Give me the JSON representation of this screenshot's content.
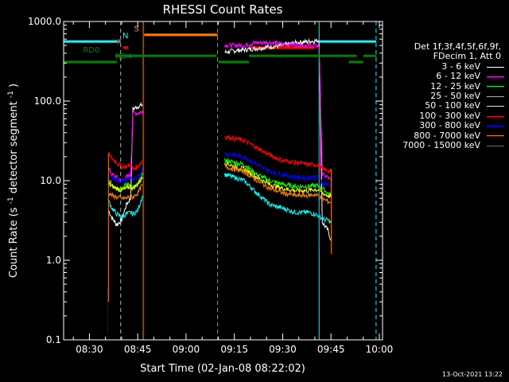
{
  "chart_data": {
    "type": "line",
    "title": "RHESSI Count Rates",
    "xlabel": "Start Time (02-Jan-08 08:22:02)",
    "ylabel_main": "Count Rate (s",
    "ylabel_mid": " detector segment",
    "ylabel_end": ")",
    "ylabel_sup": "-1",
    "y_scale": "log",
    "ylim": [
      0.1,
      1000
    ],
    "xlim_minutes": [
      22.0,
      121.0
    ],
    "y_ticks": [
      {
        "v": 1000,
        "label": "1000.0"
      },
      {
        "v": 100,
        "label": "100.0"
      },
      {
        "v": 10,
        "label": "10.0"
      },
      {
        "v": 1,
        "label": "1.0"
      },
      {
        "v": 0.1,
        "label": "0.1"
      }
    ],
    "x_ticks": [
      {
        "m": 30,
        "label": "08:30"
      },
      {
        "m": 45,
        "label": "08:45"
      },
      {
        "m": 60,
        "label": "09:00"
      },
      {
        "m": 75,
        "label": "09:15"
      },
      {
        "m": 90,
        "label": "09:30"
      },
      {
        "m": 105,
        "label": "09:45"
      },
      {
        "m": 120,
        "label": "10:00"
      }
    ],
    "legend_header": [
      "Det 1f,3f,4f,5f,6f,9f,",
      "FDecim 1, Att 0"
    ],
    "series": [
      {
        "name": "3 - 6 keV",
        "color": "#ffffff",
        "seg1": [
          [
            36.0,
            4.2
          ],
          [
            37.0,
            3.4
          ],
          [
            38.5,
            2.8
          ],
          [
            40.0,
            3.2
          ],
          [
            41.5,
            5.0
          ],
          [
            42.8,
            6.0
          ],
          [
            43.5,
            80
          ],
          [
            45.0,
            85
          ],
          [
            46.5,
            90
          ]
        ],
        "seg2": [
          [
            72.0,
            410
          ],
          [
            75.0,
            430
          ],
          [
            78.0,
            440
          ],
          [
            82.0,
            460
          ],
          [
            86.0,
            480
          ],
          [
            90.0,
            500
          ],
          [
            94.0,
            540
          ],
          [
            98.0,
            560
          ],
          [
            100.0,
            570
          ],
          [
            101.3,
            580
          ],
          [
            102.3,
            3.0
          ],
          [
            104.0,
            2.4
          ],
          [
            105.0,
            1.8
          ]
        ]
      },
      {
        "name": "6 - 12 keV",
        "color": "#ff00ff",
        "seg1": [
          [
            36.0,
            14
          ],
          [
            37.0,
            12
          ],
          [
            38.5,
            11
          ],
          [
            40.0,
            10
          ],
          [
            41.5,
            11
          ],
          [
            42.8,
            12
          ],
          [
            43.5,
            72
          ],
          [
            45.0,
            70
          ],
          [
            46.5,
            75
          ]
        ],
        "seg2": [
          [
            72.0,
            510
          ],
          [
            75.0,
            500
          ],
          [
            78.0,
            505
          ],
          [
            82.0,
            540
          ],
          [
            86.0,
            550
          ],
          [
            90.0,
            520
          ],
          [
            94.0,
            510
          ],
          [
            98.0,
            500
          ],
          [
            100.0,
            500
          ],
          [
            101.3,
            490
          ],
          [
            102.3,
            12
          ],
          [
            104.0,
            11
          ],
          [
            105.0,
            10
          ]
        ]
      },
      {
        "name": "12 - 25 keV",
        "color": "#00ff00",
        "seg1": [
          [
            36.0,
            10
          ],
          [
            37.0,
            9
          ],
          [
            38.5,
            8
          ],
          [
            40.0,
            8
          ],
          [
            41.5,
            9
          ],
          [
            42.8,
            9
          ],
          [
            43.5,
            8
          ],
          [
            45.0,
            9
          ],
          [
            46.5,
            12
          ]
        ],
        "seg2": [
          [
            72.0,
            18
          ],
          [
            75.0,
            17
          ],
          [
            78.0,
            16
          ],
          [
            82.0,
            12
          ],
          [
            86.0,
            10
          ],
          [
            90.0,
            9
          ],
          [
            94.0,
            8.5
          ],
          [
            98.0,
            8.5
          ],
          [
            100.0,
            8.7
          ],
          [
            101.3,
            8.5
          ],
          [
            102.3,
            8
          ],
          [
            104.0,
            7
          ],
          [
            105.0,
            6.5
          ]
        ]
      },
      {
        "name": "25 - 50 keV",
        "color": "#00ffff",
        "seg1": [
          [
            36.0,
            5.5
          ],
          [
            37.0,
            4.5
          ],
          [
            38.5,
            3.8
          ],
          [
            40.0,
            3.5
          ],
          [
            41.5,
            3.8
          ],
          [
            42.8,
            4.0
          ],
          [
            43.5,
            3.8
          ],
          [
            45.0,
            4.2
          ],
          [
            46.5,
            6.5
          ]
        ],
        "seg2": [
          [
            72.0,
            12
          ],
          [
            75.0,
            11
          ],
          [
            78.0,
            10
          ],
          [
            82.0,
            7
          ],
          [
            86.0,
            5
          ],
          [
            90.0,
            4.5
          ],
          [
            94.0,
            4.0
          ],
          [
            98.0,
            4.0
          ],
          [
            100.0,
            3.8
          ],
          [
            101.3,
            3.6
          ],
          [
            102.3,
            3.3
          ],
          [
            104.0,
            3.2
          ],
          [
            105.0,
            3.0
          ]
        ]
      },
      {
        "name": "50 - 100 keV",
        "color": "#ffff00",
        "seg1": [
          [
            36.0,
            9
          ],
          [
            37.0,
            8.5
          ],
          [
            38.5,
            8
          ],
          [
            40.0,
            7.5
          ],
          [
            41.5,
            8
          ],
          [
            42.8,
            8.5
          ],
          [
            43.5,
            8
          ],
          [
            45.0,
            9
          ],
          [
            46.5,
            11
          ]
        ],
        "seg2": [
          [
            72.0,
            17
          ],
          [
            75.0,
            15
          ],
          [
            78.0,
            14
          ],
          [
            82.0,
            11
          ],
          [
            86.0,
            9
          ],
          [
            90.0,
            8
          ],
          [
            94.0,
            7.5
          ],
          [
            98.0,
            7.5
          ],
          [
            100.0,
            7.8
          ],
          [
            101.3,
            7.6
          ],
          [
            102.3,
            7
          ],
          [
            104.0,
            6.5
          ],
          [
            105.0,
            6.3
          ]
        ]
      },
      {
        "name": "100 - 300 keV",
        "color": "#ff0000",
        "seg1": [
          [
            36.0,
            22
          ],
          [
            37.0,
            19
          ],
          [
            38.5,
            17
          ],
          [
            40.0,
            15
          ],
          [
            41.5,
            15
          ],
          [
            42.8,
            16
          ],
          [
            43.5,
            14
          ],
          [
            45.0,
            15
          ],
          [
            46.5,
            18
          ]
        ],
        "seg2": [
          [
            72.0,
            36
          ],
          [
            75.0,
            34
          ],
          [
            78.0,
            32
          ],
          [
            82.0,
            26
          ],
          [
            86.0,
            21
          ],
          [
            90.0,
            18
          ],
          [
            94.0,
            17
          ],
          [
            98.0,
            16
          ],
          [
            100.0,
            16
          ],
          [
            101.3,
            15.5
          ],
          [
            102.3,
            14
          ],
          [
            104.0,
            13.5
          ],
          [
            105.0,
            13
          ]
        ]
      },
      {
        "name": "300 - 800 keV",
        "color": "#0000ff",
        "seg1": [
          [
            36.0,
            12
          ],
          [
            37.0,
            11
          ],
          [
            38.5,
            10
          ],
          [
            40.0,
            10
          ],
          [
            41.5,
            10
          ],
          [
            42.8,
            11
          ],
          [
            43.5,
            10
          ],
          [
            45.0,
            11
          ],
          [
            46.5,
            14
          ]
        ],
        "seg2": [
          [
            72.0,
            22
          ],
          [
            75.0,
            21
          ],
          [
            78.0,
            20
          ],
          [
            82.0,
            16
          ],
          [
            86.0,
            13
          ],
          [
            90.0,
            12
          ],
          [
            94.0,
            11
          ],
          [
            98.0,
            11
          ],
          [
            100.0,
            11.2
          ],
          [
            101.3,
            10.8
          ],
          [
            102.3,
            9.5
          ],
          [
            104.0,
            9
          ],
          [
            105.0,
            8.5
          ]
        ]
      },
      {
        "name": "800 - 7000 keV",
        "color": "#ff8000",
        "seg1": [
          [
            36.0,
            7
          ],
          [
            37.0,
            6.5
          ],
          [
            38.5,
            6.2
          ],
          [
            40.0,
            6
          ],
          [
            41.5,
            6
          ],
          [
            42.8,
            6.5
          ],
          [
            43.5,
            6.2
          ],
          [
            45.0,
            7
          ],
          [
            46.5,
            9
          ]
        ],
        "seg2": [
          [
            72.0,
            15
          ],
          [
            75.0,
            14
          ],
          [
            78.0,
            13
          ],
          [
            82.0,
            10
          ],
          [
            86.0,
            8
          ],
          [
            90.0,
            7
          ],
          [
            94.0,
            6.5
          ],
          [
            98.0,
            6.5
          ],
          [
            100.0,
            6.7
          ],
          [
            101.3,
            6.4
          ],
          [
            102.3,
            6
          ],
          [
            104.0,
            5.5
          ],
          [
            105.0,
            5.3
          ]
        ]
      },
      {
        "name": "7000 - 15000 keV",
        "color": "#808000",
        "seg1": [],
        "seg2": []
      }
    ],
    "vlines": [
      {
        "m": 22.0,
        "color": "#00ffff",
        "dash": false
      },
      {
        "m": 39.7,
        "color": "#00ffff",
        "dash": true
      },
      {
        "m": 46.7,
        "color": "#ff8000",
        "dash": false
      },
      {
        "m": 69.8,
        "color": "#ff8000",
        "dash": true
      },
      {
        "m": 101.3,
        "color": "#00ffff",
        "dash": false
      },
      {
        "m": 119.0,
        "color": "#00ffff",
        "dash": true
      }
    ],
    "spikes": [
      {
        "m": 35.7,
        "from": 0.12,
        "to": 0.45,
        "color": "#0000ff"
      },
      {
        "m": 35.9,
        "from": 0.3,
        "to": 22,
        "color": "#ff8000"
      },
      {
        "m": 101.4,
        "from": 1.4,
        "to": 50,
        "color": "#ff00ff"
      },
      {
        "m": 105.1,
        "from": 1.2,
        "to": 14,
        "color": "#ff8000"
      }
    ],
    "flag_bars": [
      {
        "label": "N",
        "color": "#00ffff",
        "ylev": 560,
        "segs": [
          [
            22.0,
            39.7
          ],
          [
            101.3,
            119.0
          ]
        ]
      },
      {
        "label": "S",
        "color": "#ff8000",
        "ylev": 680,
        "segs": [
          [
            47.0,
            69.8
          ]
        ]
      },
      {
        "label": "F",
        "color": "#ff0000",
        "ylev": 470,
        "segs": [
          [
            40.5,
            42.0
          ],
          [
            80.0,
            100.0
          ]
        ]
      },
      {
        "label": "RD0",
        "color": "#008000",
        "ylev": 310,
        "segs": [
          [
            22.0,
            38.5
          ],
          [
            70.0,
            79.5
          ],
          [
            110.5,
            115.0
          ]
        ]
      },
      {
        "label": "RD4",
        "color": "#008000",
        "ylev": 370,
        "segs": [
          [
            38.0,
            69.5
          ],
          [
            79.5,
            113.0
          ],
          [
            115.0,
            119.0
          ]
        ]
      }
    ],
    "flag_labels": [
      {
        "text": "N",
        "m": 41.2,
        "ylev": 560,
        "color": "#00ffff"
      },
      {
        "text": "S",
        "m": 44.6,
        "ylev": 680,
        "color": "#ff8000"
      },
      {
        "text": "F",
        "m": 39.2,
        "ylev": 470,
        "color": "#ff0000"
      },
      {
        "text": "RD0",
        "m": 30.6,
        "ylev": 370,
        "color": "#008000"
      },
      {
        "text": "RD4",
        "m": 40.6,
        "ylev": 310,
        "color": "#008000"
      }
    ]
  },
  "footer_date": "13-Oct-2021 13:22"
}
